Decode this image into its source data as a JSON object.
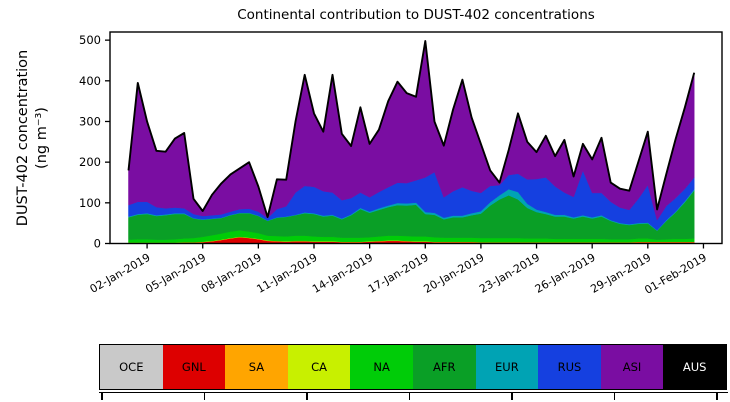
{
  "figure": {
    "title": "Continental contribution to DUST-402 concentrations",
    "y_axis": {
      "label": "DUST-402 concentration\n(ng m⁻³)",
      "tick_labels": [
        "0",
        "100",
        "200",
        "300",
        "400",
        "500"
      ],
      "tick_values": [
        0,
        100,
        200,
        300,
        400,
        500
      ]
    },
    "x_axis": {
      "tick_labels": [
        "02-Jan-2019",
        "05-Jan-2019",
        "08-Jan-2019",
        "11-Jan-2019",
        "14-Jan-2019",
        "17-Jan-2019",
        "20-Jan-2019",
        "23-Jan-2019",
        "26-Jan-2019",
        "29-Jan-2019",
        "01-Feb-2019"
      ],
      "tick_days_since_jan1": [
        1,
        4,
        7,
        10,
        13,
        16,
        19,
        22,
        25,
        28,
        31
      ]
    }
  },
  "legend": {
    "items": [
      {
        "label": "OCE",
        "color": "#c9c9c9",
        "text_color": "#000000"
      },
      {
        "label": "GNL",
        "color": "#dd0000",
        "text_color": "#000000"
      },
      {
        "label": "SA",
        "color": "#ffa500",
        "text_color": "#000000"
      },
      {
        "label": "CA",
        "color": "#c8f000",
        "text_color": "#000000"
      },
      {
        "label": "NA",
        "color": "#00cc08",
        "text_color": "#000000"
      },
      {
        "label": "AFR",
        "color": "#0a9f26",
        "text_color": "#000000"
      },
      {
        "label": "EUR",
        "color": "#00a3b4",
        "text_color": "#000000"
      },
      {
        "label": "RUS",
        "color": "#1540e0",
        "text_color": "#000000"
      },
      {
        "label": "ASI",
        "color": "#7a0da2",
        "text_color": "#000000"
      },
      {
        "label": "AUS",
        "color": "#000000",
        "text_color": "#ffffff"
      }
    ],
    "sub_axis_tick_count": 7
  },
  "chart_data": {
    "type": "area",
    "stacked": true,
    "title": "Continental contribution to DUST-402 concentrations",
    "xlabel": "",
    "ylabel": "DUST-402 concentration (ng m⁻³)",
    "ylim": [
      0,
      520
    ],
    "x_start": "01-Jan-2019 00:00",
    "x_step_hours": 12,
    "x_days_since_jan1": [
      0,
      0.5,
      1,
      1.5,
      2,
      2.5,
      3,
      3.5,
      4,
      4.5,
      5,
      5.5,
      6,
      6.5,
      7,
      7.5,
      8,
      8.5,
      9,
      9.5,
      10,
      10.5,
      11,
      11.5,
      12,
      12.5,
      13,
      13.5,
      14,
      14.5,
      15,
      15.5,
      16,
      16.5,
      17,
      17.5,
      18,
      18.5,
      19,
      19.5,
      20,
      20.5,
      21,
      21.5,
      22,
      22.5,
      23,
      23.5,
      24,
      24.5,
      25,
      25.5,
      26,
      26.5,
      27,
      27.5,
      28,
      28.5,
      29,
      29.5,
      30,
      30.5
    ],
    "x_domain_days": [
      -1,
      32
    ],
    "units": "ng m⁻³",
    "series": [
      {
        "name": "OCE",
        "color": "#c9c9c9",
        "constant": 0.5
      },
      {
        "name": "GNL",
        "color": "#dd0000",
        "values": [
          1,
          1,
          1,
          1,
          1,
          1,
          2,
          2,
          3,
          5,
          8,
          12,
          15,
          13,
          10,
          6,
          5,
          4,
          5,
          5,
          4,
          4,
          4,
          3,
          3,
          3,
          4,
          5,
          6,
          6,
          5,
          4,
          4,
          3,
          3,
          3,
          3,
          3,
          2,
          2,
          2,
          2,
          2,
          2,
          2,
          2,
          2,
          2,
          2,
          2,
          2,
          2,
          2,
          2,
          2,
          3,
          3,
          3,
          3,
          3,
          3,
          3
        ]
      },
      {
        "name": "SA",
        "color": "#ffa500",
        "constant": 0.5
      },
      {
        "name": "CA",
        "color": "#c8f000",
        "constant": 0.5
      },
      {
        "name": "NA",
        "color": "#00cc08",
        "values": [
          7,
          8,
          8,
          7,
          7,
          8,
          9,
          10,
          12,
          14,
          15,
          16,
          16,
          15,
          14,
          12,
          12,
          12,
          13,
          13,
          12,
          11,
          11,
          10,
          10,
          10,
          10,
          11,
          12,
          12,
          12,
          12,
          12,
          11,
          10,
          10,
          10,
          10,
          10,
          10,
          10,
          10,
          10,
          9,
          9,
          9,
          8,
          8,
          8,
          8,
          8,
          8,
          7,
          7,
          7,
          8,
          8,
          5,
          6,
          7,
          7,
          8
        ]
      },
      {
        "name": "AFR",
        "color": "#0a9f26",
        "values": [
          55,
          60,
          62,
          58,
          60,
          62,
          60,
          48,
          42,
          40,
          38,
          40,
          42,
          45,
          42,
          36,
          45,
          48,
          50,
          55,
          55,
          50,
          52,
          45,
          55,
          70,
          60,
          65,
          70,
          75,
          75,
          78,
          55,
          55,
          45,
          50,
          50,
          55,
          60,
          80,
          95,
          105,
          95,
          75,
          65,
          60,
          55,
          55,
          50,
          55,
          50,
          55,
          45,
          38,
          35,
          36,
          37,
          22,
          45,
          65,
          90,
          118
        ]
      },
      {
        "name": "EUR",
        "color": "#00a3b4",
        "values": [
          2,
          2,
          2,
          2,
          2,
          2,
          2,
          1,
          1,
          1,
          1,
          1,
          1,
          1,
          1,
          1,
          1,
          1,
          1,
          2,
          2,
          2,
          2,
          2,
          2,
          3,
          3,
          4,
          4,
          5,
          5,
          5,
          5,
          5,
          4,
          4,
          4,
          5,
          6,
          8,
          10,
          15,
          18,
          10,
          6,
          5,
          4,
          4,
          3,
          3,
          3,
          3,
          2,
          2,
          2,
          2,
          2,
          1,
          2,
          2,
          3,
          3
        ]
      },
      {
        "name": "RUS",
        "color": "#1540e0",
        "values": [
          28,
          30,
          28,
          20,
          15,
          14,
          12,
          10,
          8,
          8,
          8,
          8,
          9,
          10,
          10,
          6,
          20,
          25,
          55,
          65,
          65,
          60,
          55,
          45,
          40,
          38,
          35,
          40,
          45,
          50,
          50,
          55,
          85,
          100,
          50,
          60,
          70,
          55,
          45,
          40,
          25,
          35,
          45,
          60,
          75,
          85,
          70,
          55,
          50,
          110,
          60,
          55,
          45,
          38,
          35,
          60,
          92,
          25,
          35,
          33,
          30,
          29
        ]
      },
      {
        "name": "ASI",
        "color": "#7a0da2",
        "values": [
          85,
          292,
          197,
          138,
          139,
          169,
          185,
          37,
          12,
          50,
          76,
          91,
          100,
          114,
          61,
          2,
          73,
          65,
          174,
          273,
          180,
          146,
          289,
          163,
          128,
          209,
          131,
          153,
          211,
          248,
          221,
          205,
          335,
          124,
          127,
          201,
          264,
          180,
          120,
          38,
          6,
          61,
          148,
          92,
          66,
          102,
          74,
          129,
          50,
          65,
          82,
          135,
          47,
          46,
          47,
          91,
          131,
          26,
          79,
          145,
          200,
          257
        ]
      },
      {
        "name": "AUS",
        "color": "#000000",
        "constant": 0.3
      }
    ]
  }
}
